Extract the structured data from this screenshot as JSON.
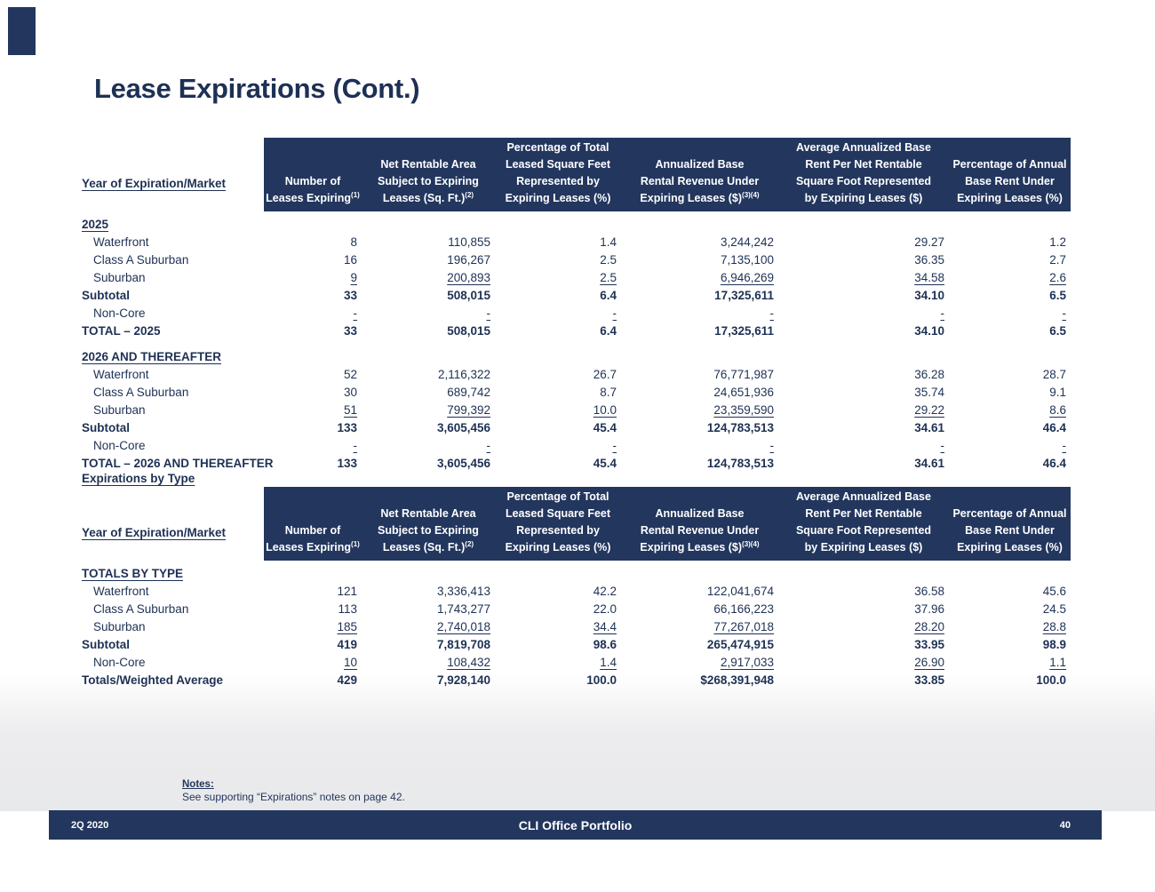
{
  "title": "Lease Expirations (Cont.)",
  "section_heading": "Expirations by Type",
  "columns": [
    {
      "lines": [
        "Number of",
        "Leases Expiring"
      ],
      "sup": "(1)"
    },
    {
      "lines": [
        "Net Rentable Area",
        "Subject to Expiring",
        "Leases (Sq. Ft.)"
      ],
      "sup": "(2)"
    },
    {
      "lines": [
        "Percentage of Total",
        "Leased Square Feet",
        "Represented by",
        "Expiring Leases (%)"
      ],
      "sup": ""
    },
    {
      "lines": [
        "Annualized Base",
        "Rental Revenue Under",
        "Expiring Leases ($)"
      ],
      "sup": "(3)(4)"
    },
    {
      "lines": [
        "Average Annualized Base",
        "Rent Per Net Rentable",
        "Square Foot Represented",
        "by Expiring Leases ($)"
      ],
      "sup": ""
    },
    {
      "lines": [
        "Percentage of Annual",
        "Base Rent Under",
        "Expiring Leases (%)"
      ],
      "sup": ""
    }
  ],
  "tables": [
    {
      "row_header_label": "Year of Expiration/Market",
      "rows": [
        {
          "label": "2025",
          "section": true,
          "cells": [
            "",
            "",
            "",
            "",
            "",
            ""
          ]
        },
        {
          "label": "Waterfront",
          "indent": true,
          "cells": [
            "8",
            "110,855",
            "1.4",
            "3,244,242",
            "29.27",
            "1.2"
          ]
        },
        {
          "label": "Class A Suburban",
          "indent": true,
          "cells": [
            "16",
            "196,267",
            "2.5",
            "7,135,100",
            "36.35",
            "2.7"
          ]
        },
        {
          "label": "Suburban",
          "indent": true,
          "underline": true,
          "cells": [
            "9",
            "200,893",
            "2.5",
            "6,946,269",
            "34.58",
            "2.6"
          ]
        },
        {
          "label": "Subtotal",
          "bold": true,
          "cells": [
            "33",
            "508,015",
            "6.4",
            "17,325,611",
            "34.10",
            "6.5"
          ]
        },
        {
          "label": "Non-Core",
          "indent": true,
          "underline": true,
          "cells": [
            "-",
            "-",
            "-",
            "-",
            "-",
            "-"
          ]
        },
        {
          "label": "TOTAL – 2025",
          "bold": true,
          "cells": [
            "33",
            "508,015",
            "6.4",
            "17,325,611",
            "34.10",
            "6.5"
          ]
        },
        {
          "label": "2026 AND THEREAFTER",
          "section": true,
          "gap": true,
          "cells": [
            "",
            "",
            "",
            "",
            "",
            ""
          ]
        },
        {
          "label": "Waterfront",
          "indent": true,
          "cells": [
            "52",
            "2,116,322",
            "26.7",
            "76,771,987",
            "36.28",
            "28.7"
          ]
        },
        {
          "label": "Class A Suburban",
          "indent": true,
          "cells": [
            "30",
            "689,742",
            "8.7",
            "24,651,936",
            "35.74",
            "9.1"
          ]
        },
        {
          "label": "Suburban",
          "indent": true,
          "underline": true,
          "cells": [
            "51",
            "799,392",
            "10.0",
            "23,359,590",
            "29.22",
            "8.6"
          ]
        },
        {
          "label": "Subtotal",
          "bold": true,
          "cells": [
            "133",
            "3,605,456",
            "45.4",
            "124,783,513",
            "34.61",
            "46.4"
          ]
        },
        {
          "label": "Non-Core",
          "indent": true,
          "underline": true,
          "cells": [
            "-",
            "-",
            "-",
            "-",
            "-",
            "-"
          ]
        },
        {
          "label": "TOTAL – 2026 AND THEREAFTER",
          "bold": true,
          "cells": [
            "133",
            "3,605,456",
            "45.4",
            "124,783,513",
            "34.61",
            "46.4"
          ]
        }
      ]
    },
    {
      "row_header_label": "Year of Expiration/Market",
      "rows": [
        {
          "label": "TOTALS BY TYPE",
          "section": true,
          "cells": [
            "",
            "",
            "",
            "",
            "",
            ""
          ]
        },
        {
          "label": "Waterfront",
          "indent": true,
          "cells": [
            "121",
            "3,336,413",
            "42.2",
            "122,041,674",
            "36.58",
            "45.6"
          ]
        },
        {
          "label": "Class A Suburban",
          "indent": true,
          "cells": [
            "113",
            "1,743,277",
            "22.0",
            "66,166,223",
            "37.96",
            "24.5"
          ]
        },
        {
          "label": "Suburban",
          "indent": true,
          "underline": true,
          "cells": [
            "185",
            "2,740,018",
            "34.4",
            "77,267,018",
            "28.20",
            "28.8"
          ]
        },
        {
          "label": "Subtotal",
          "bold": true,
          "cells": [
            "419",
            "7,819,708",
            "98.6",
            "265,474,915",
            "33.95",
            "98.9"
          ]
        },
        {
          "label": "Non-Core",
          "indent": true,
          "underline": true,
          "cells": [
            "10",
            "108,432",
            "1.4",
            "2,917,033",
            "26.90",
            "1.1"
          ]
        },
        {
          "label": "Totals/Weighted Average",
          "bold": true,
          "cells": [
            "429",
            "7,928,140",
            "100.0",
            "$268,391,948",
            "33.85",
            "100.0"
          ]
        }
      ]
    }
  ],
  "notes": {
    "label": "Notes:",
    "text": "See supporting “Expirations” notes on page 42."
  },
  "footer": {
    "left": "2Q 2020",
    "center": "CLI Office Portfolio",
    "page": "40"
  },
  "colors": {
    "navy_band": "#22365e",
    "navy_text": "#1e3154",
    "band_gray": "#e8e9eb"
  }
}
